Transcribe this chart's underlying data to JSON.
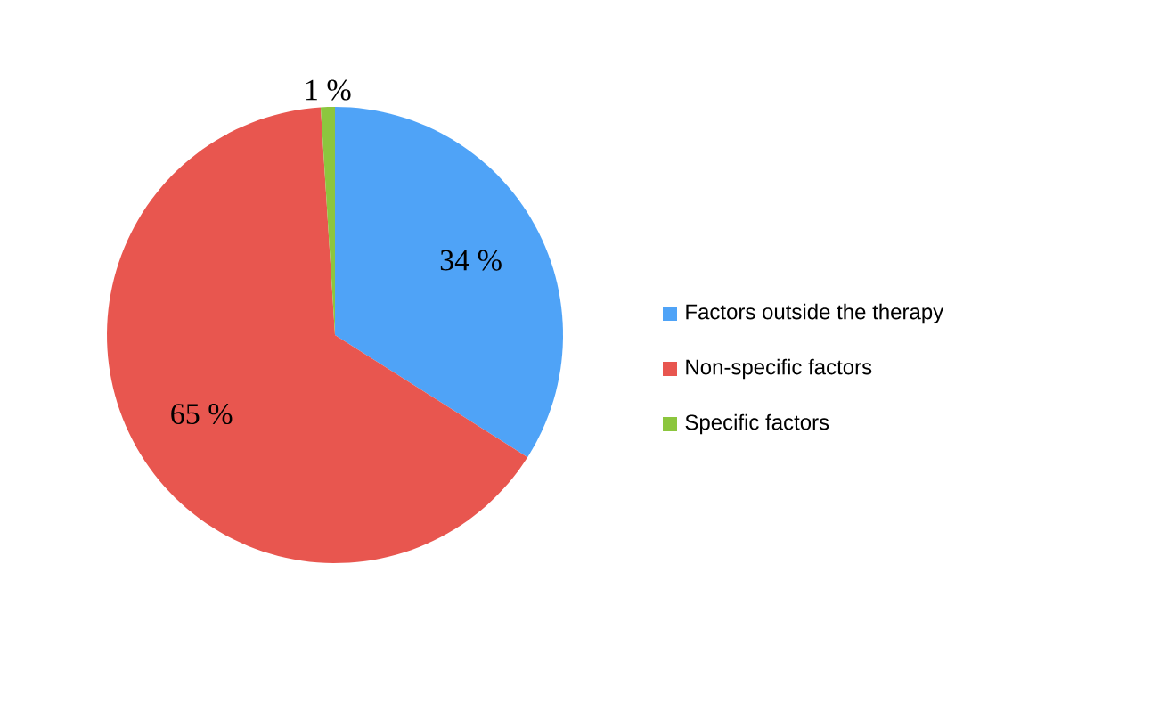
{
  "chart_data": {
    "type": "pie",
    "categories": [
      "Factors outside the therapy",
      "Non-specific factors",
      "Specific factors"
    ],
    "values": [
      34,
      65,
      1
    ],
    "colors": [
      "#4fa3f7",
      "#e8564f",
      "#8cc63e"
    ],
    "value_labels": [
      "34 %",
      "65 %",
      "1 %"
    ],
    "legend": "right"
  }
}
